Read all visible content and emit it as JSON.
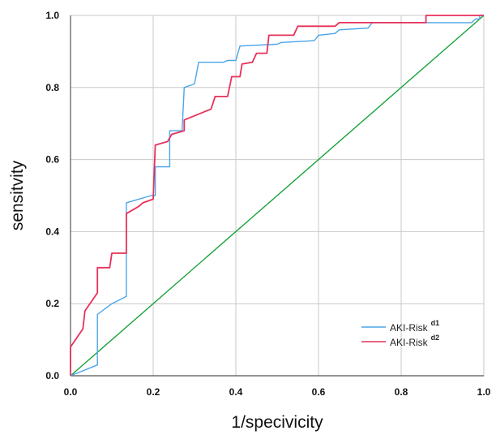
{
  "chart_data": {
    "type": "line",
    "title": "",
    "xlabel": "1/specivicity",
    "ylabel": "sensitvity",
    "xlim": [
      0.0,
      1.0
    ],
    "ylim": [
      0.0,
      1.0
    ],
    "x_ticks": [
      "0.0",
      "0.2",
      "0.4",
      "0.6",
      "0.8",
      "1.0"
    ],
    "y_ticks": [
      "0.0",
      "0.2",
      "0.4",
      "0.6",
      "0.8",
      "1.0"
    ],
    "grid": true,
    "legend_position": "bottom-right",
    "series": [
      {
        "name": "AKI-Risk",
        "name_superscript": "d1",
        "color": "#4aa6e8",
        "points": [
          [
            0.0,
            0.0
          ],
          [
            0.065,
            0.03
          ],
          [
            0.065,
            0.17
          ],
          [
            0.1,
            0.2
          ],
          [
            0.135,
            0.22
          ],
          [
            0.135,
            0.48
          ],
          [
            0.165,
            0.49
          ],
          [
            0.195,
            0.5
          ],
          [
            0.205,
            0.5
          ],
          [
            0.205,
            0.58
          ],
          [
            0.24,
            0.58
          ],
          [
            0.24,
            0.68
          ],
          [
            0.27,
            0.68
          ],
          [
            0.275,
            0.8
          ],
          [
            0.3,
            0.81
          ],
          [
            0.31,
            0.87
          ],
          [
            0.37,
            0.87
          ],
          [
            0.38,
            0.875
          ],
          [
            0.4,
            0.875
          ],
          [
            0.41,
            0.915
          ],
          [
            0.5,
            0.92
          ],
          [
            0.51,
            0.925
          ],
          [
            0.59,
            0.93
          ],
          [
            0.6,
            0.945
          ],
          [
            0.64,
            0.95
          ],
          [
            0.65,
            0.96
          ],
          [
            0.72,
            0.965
          ],
          [
            0.73,
            0.98
          ],
          [
            0.97,
            0.98
          ],
          [
            0.98,
            0.99
          ],
          [
            0.99,
            0.99
          ],
          [
            0.99,
            1.0
          ],
          [
            1.0,
            1.0
          ]
        ]
      },
      {
        "name": "AKI-Risk",
        "name_superscript": "d2",
        "color": "#e8305a",
        "points": [
          [
            0.0,
            0.0
          ],
          [
            0.0,
            0.08
          ],
          [
            0.03,
            0.13
          ],
          [
            0.035,
            0.18
          ],
          [
            0.065,
            0.23
          ],
          [
            0.065,
            0.3
          ],
          [
            0.095,
            0.3
          ],
          [
            0.1,
            0.34
          ],
          [
            0.135,
            0.34
          ],
          [
            0.135,
            0.45
          ],
          [
            0.165,
            0.47
          ],
          [
            0.175,
            0.48
          ],
          [
            0.2,
            0.49
          ],
          [
            0.205,
            0.64
          ],
          [
            0.235,
            0.65
          ],
          [
            0.245,
            0.67
          ],
          [
            0.275,
            0.68
          ],
          [
            0.275,
            0.71
          ],
          [
            0.34,
            0.74
          ],
          [
            0.35,
            0.775
          ],
          [
            0.38,
            0.775
          ],
          [
            0.39,
            0.83
          ],
          [
            0.41,
            0.83
          ],
          [
            0.415,
            0.865
          ],
          [
            0.44,
            0.87
          ],
          [
            0.45,
            0.895
          ],
          [
            0.475,
            0.895
          ],
          [
            0.48,
            0.945
          ],
          [
            0.54,
            0.945
          ],
          [
            0.55,
            0.97
          ],
          [
            0.64,
            0.97
          ],
          [
            0.65,
            0.98
          ],
          [
            0.86,
            0.98
          ],
          [
            0.86,
            1.0
          ],
          [
            1.0,
            1.0
          ]
        ]
      },
      {
        "name": "",
        "color": "#1aa33a",
        "points": [
          [
            0.0,
            0.0
          ],
          [
            1.0,
            1.0
          ]
        ]
      }
    ]
  }
}
